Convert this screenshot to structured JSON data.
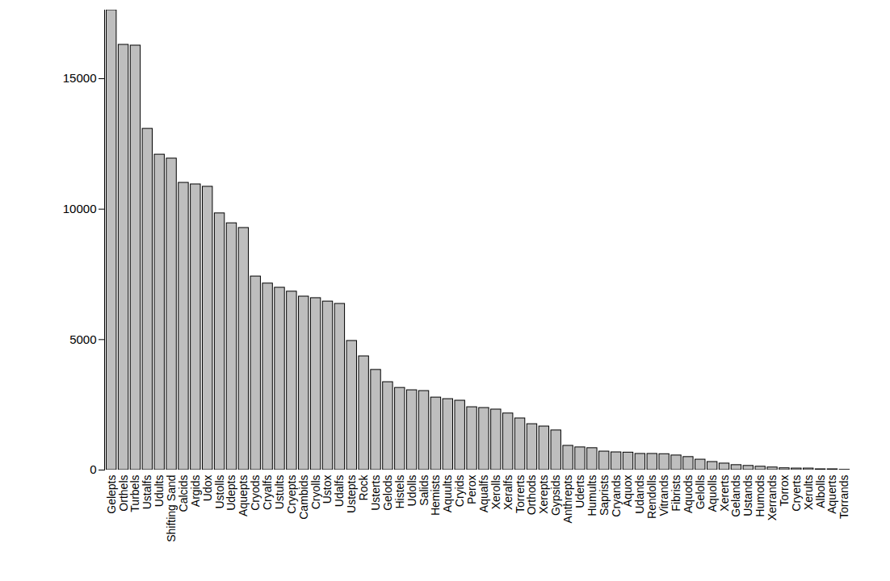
{
  "chart_data": {
    "type": "bar",
    "categories": [
      "Gelepts",
      "Orthels",
      "Turbels",
      "Ustalfs",
      "Udults",
      "Shifting Sand",
      "Calcids",
      "Argids",
      "Udox",
      "Ustolls",
      "Udepts",
      "Aquepts",
      "Cryods",
      "Cryalfs",
      "Ustults",
      "Cryepts",
      "Cambids",
      "Cryolls",
      "Ustox",
      "Udalfs",
      "Ustepts",
      "Rock",
      "Usterts",
      "Gelods",
      "Histels",
      "Udolls",
      "Salids",
      "Hemists",
      "Aquults",
      "Cryids",
      "Perox",
      "Aqualfs",
      "Xerolls",
      "Xeralfs",
      "Torrerts",
      "Orthods",
      "Xerepts",
      "Gypsids",
      "Anthrepts",
      "Uderts",
      "Humults",
      "Saprists",
      "Cryands",
      "Aquox",
      "Udands",
      "Rendolls",
      "Vitrands",
      "Fibrists",
      "Aquods",
      "Gelolls",
      "Aquolls",
      "Xererts",
      "Gelands",
      "Ustands",
      "Humods",
      "Xerrands",
      "Torrox",
      "Cryerts",
      "Xerults",
      "Albolls",
      "Aquerts",
      "Torrands"
    ],
    "values": [
      17630,
      16300,
      16270,
      13080,
      12090,
      11940,
      11010,
      10950,
      10860,
      9840,
      9460,
      9280,
      7420,
      7150,
      6990,
      6840,
      6650,
      6590,
      6460,
      6370,
      4950,
      4360,
      3840,
      3370,
      3150,
      3060,
      3030,
      2780,
      2720,
      2660,
      2410,
      2380,
      2320,
      2170,
      1980,
      1760,
      1670,
      1520,
      930,
      870,
      840,
      710,
      680,
      670,
      620,
      620,
      610,
      560,
      500,
      400,
      310,
      250,
      190,
      160,
      130,
      100,
      70,
      60,
      60,
      30,
      30,
      10
    ],
    "color": "#bebebe",
    "ylim": [
      0,
      17630
    ],
    "yticks": [
      0,
      5000,
      10000,
      15000
    ],
    "grid": false
  }
}
